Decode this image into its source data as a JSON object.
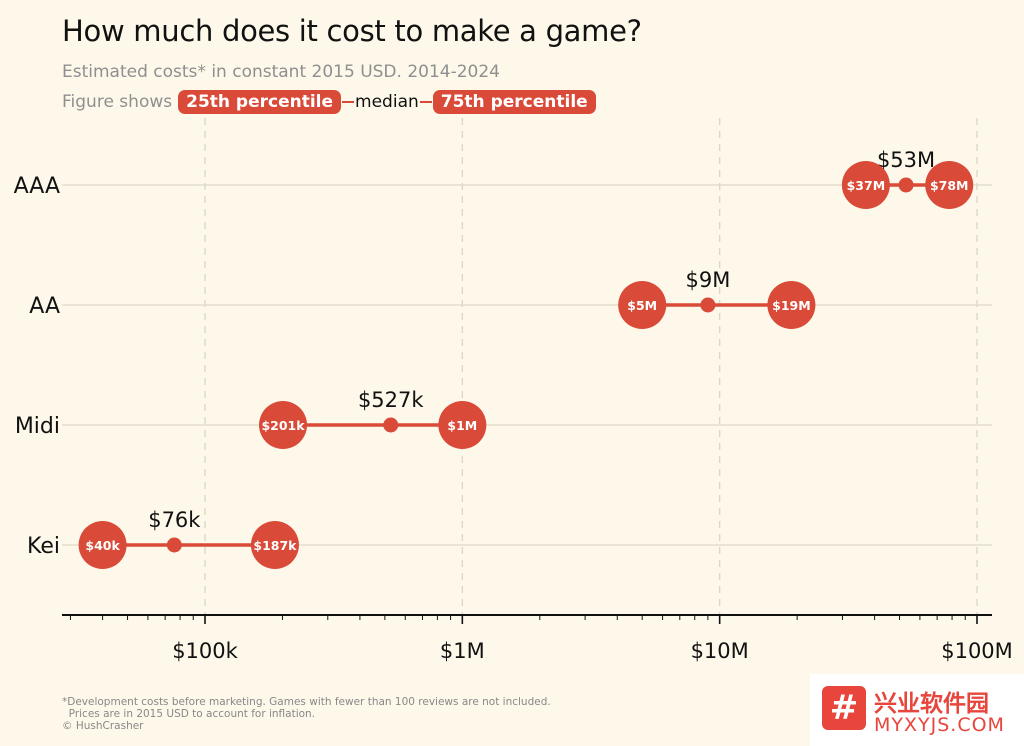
{
  "title": "How much does it cost to make a game?",
  "subtitle": "Estimated costs* in constant 2015 USD. 2014-2024",
  "legend": {
    "prefix": "Figure shows",
    "p25": "25th percentile",
    "median": "median",
    "p75": "75th percentile"
  },
  "footnote": "*Development costs before marketing. Games with fewer than 100 reviews are not included.\n  Prices are in 2015 USD to account for inflation.\n© HushCrasher",
  "watermark": {
    "badge": "#",
    "chinese": "兴业软件园",
    "url": "MYXYJS.COM"
  },
  "colors": {
    "accent": "#d94a38",
    "background": "#fdf8ea",
    "grid": "#ddd8c6",
    "axis": "#111111"
  },
  "chart_data": {
    "type": "dumbbell",
    "x_scale": "log",
    "xlim": [
      30000,
      110000000
    ],
    "x_ticks": [
      {
        "value": 100000,
        "label": "$100k"
      },
      {
        "value": 1000000,
        "label": "$1M"
      },
      {
        "value": 10000000,
        "label": "$10M"
      },
      {
        "value": 100000000,
        "label": "$100M"
      }
    ],
    "grid": {
      "vertical": "dashed",
      "horizontal": "solid"
    },
    "categories": [
      "AAA",
      "AA",
      "Midi",
      "Kei"
    ],
    "series": [
      {
        "category": "AAA",
        "p25": 37000000,
        "median": 53000000,
        "p75": 78000000,
        "p25_label": "$37M",
        "median_label": "$53M",
        "p75_label": "$78M"
      },
      {
        "category": "AA",
        "p25": 5000000,
        "median": 9000000,
        "p75": 19000000,
        "p25_label": "$5M",
        "median_label": "$9M",
        "p75_label": "$19M"
      },
      {
        "category": "Midi",
        "p25": 201000,
        "median": 527000,
        "p75": 1000000,
        "p25_label": "$201k",
        "median_label": "$527k",
        "p75_label": "$1M"
      },
      {
        "category": "Kei",
        "p25": 40000,
        "median": 76000,
        "p75": 187000,
        "p25_label": "$40k",
        "median_label": "$76k",
        "p75_label": "$187k"
      }
    ]
  }
}
